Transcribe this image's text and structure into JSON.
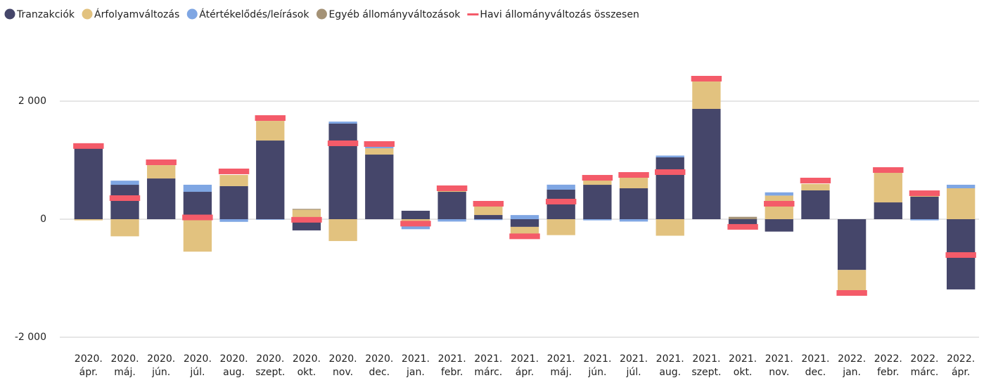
{
  "chart_data": {
    "type": "bar",
    "categories": [
      "2020. ápr.",
      "2020. máj.",
      "2020. jún.",
      "2020. júl.",
      "2020. aug.",
      "2020. szept.",
      "2020. okt.",
      "2020. nov.",
      "2020. dec.",
      "2021. jan.",
      "2021. febr.",
      "2021. márc.",
      "2021. ápr.",
      "2021. máj.",
      "2021. jún.",
      "2021. júl.",
      "2021. aug.",
      "2021. szept.",
      "2021. okt.",
      "2021. nov.",
      "2021. dec.",
      "2022. jan.",
      "2022. febr.",
      "2022. márc.",
      "2022. ápr."
    ],
    "series": [
      {
        "name": "Tranzakciók",
        "type": "bar",
        "color": "#45466a",
        "values": [
          1200,
          583,
          690,
          464,
          560,
          1333,
          -190,
          1619,
          1095,
          143,
          464,
          71,
          -130,
          500,
          583,
          524,
          1048,
          1869,
          -90,
          -210,
          488,
          -860,
          285,
          381,
          -1190
        ]
      },
      {
        "name": "Árfolyamváltozás",
        "type": "bar",
        "color": "#e2c27f",
        "values": [
          -20,
          -290,
          226,
          -550,
          190,
          333,
          160,
          -370,
          107,
          -80,
          90,
          190,
          -160,
          -270,
          85,
          190,
          -280,
          464,
          -80,
          400,
          110,
          -370,
          510,
          60,
          524
        ]
      },
      {
        "name": "Átértékelődés/leírások",
        "type": "bar",
        "color": "#7fa6e3",
        "values": [
          0,
          70,
          0,
          120,
          -45,
          -10,
          0,
          35,
          95,
          -90,
          -40,
          -15,
          70,
          85,
          -20,
          -40,
          30,
          0,
          0,
          55,
          0,
          0,
          0,
          -20,
          60
        ]
      },
      {
        "name": "Egyéb állományváltozások",
        "type": "bar",
        "color": "#a49276",
        "values": [
          0,
          0,
          0,
          0,
          0,
          0,
          15,
          0,
          0,
          0,
          0,
          0,
          0,
          0,
          0,
          0,
          0,
          0,
          40,
          0,
          0,
          0,
          0,
          0,
          0
        ]
      },
      {
        "name": "Havi állományváltozás összesen",
        "type": "line",
        "color": "#f45b69",
        "values": [
          1240,
          357,
          964,
          30,
          810,
          1714,
          -10,
          1286,
          1274,
          -75,
          524,
          262,
          -290,
          298,
          702,
          750,
          798,
          2381,
          -130,
          262,
          655,
          -1250,
          833,
          440,
          -607
        ]
      }
    ],
    "ylim": [
      -2200,
      3000
    ],
    "yticks": [
      {
        "value": -2000,
        "label": "-2 000"
      },
      0,
      {
        "value": 2000,
        "label": "2 000"
      }
    ],
    "grid": true,
    "legend": "top-left"
  }
}
